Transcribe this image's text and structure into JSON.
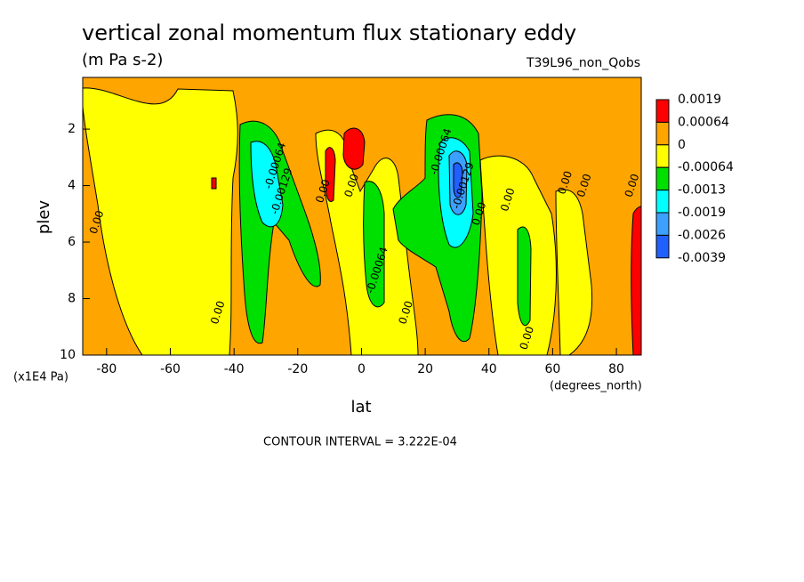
{
  "chart_data": {
    "type": "contour",
    "title": "vertical zonal momentum flux stationary eddy",
    "subtitle": "(m Pa s-2)",
    "dataset": "T39L96_non_Qobs",
    "xlabel": "lat",
    "ylabel": "plev",
    "x_units": "(degrees_north)",
    "y_units": "(x1E4 Pa)",
    "note": "CONTOUR INTERVAL = 3.222E-04",
    "xlim": [
      -87.5,
      87.8
    ],
    "xticks": [
      -80,
      -60,
      -40,
      -20,
      0,
      20,
      40,
      60,
      80
    ],
    "ylim": [
      10,
      0.17
    ],
    "yticks": [
      2,
      4,
      6,
      8,
      10
    ],
    "levels": [
      0.0019,
      0.00064,
      0,
      -0.00064,
      -0.0013,
      -0.0019,
      -0.0026,
      -0.0039
    ],
    "level_colors": [
      "#ff0000",
      "#ffa500",
      "#ffff00",
      "#00e000",
      "#00ffff",
      "#3ca0ff",
      "#2060ff"
    ],
    "contour_labels": [
      {
        "text": "-0.00064",
        "x": -27,
        "y": 3.3
      },
      {
        "text": "-0.00129",
        "x": -25,
        "y": 4.2
      },
      {
        "text": "0.00",
        "x": -45,
        "y": 8.5
      },
      {
        "text": "0.00",
        "x": -83,
        "y": 5.3
      },
      {
        "text": "0.00",
        "x": -12,
        "y": 4.2
      },
      {
        "text": "0.00",
        "x": -3,
        "y": 4.0
      },
      {
        "text": "-0.00064",
        "x": 5,
        "y": 7.0
      },
      {
        "text": "0.00",
        "x": 14,
        "y": 8.5
      },
      {
        "text": "-0.00064",
        "x": 25,
        "y": 2.8
      },
      {
        "text": "-0.00129",
        "x": 32,
        "y": 4.0
      },
      {
        "text": "0.00",
        "x": 37,
        "y": 5.0
      },
      {
        "text": "0.00",
        "x": 46,
        "y": 4.5
      },
      {
        "text": "0.00",
        "x": 64,
        "y": 3.9
      },
      {
        "text": "0.00",
        "x": 70,
        "y": 4.0
      },
      {
        "text": "0.00",
        "x": 85,
        "y": 4.0
      },
      {
        "text": "0.00",
        "x": 52,
        "y": 9.4
      }
    ]
  }
}
